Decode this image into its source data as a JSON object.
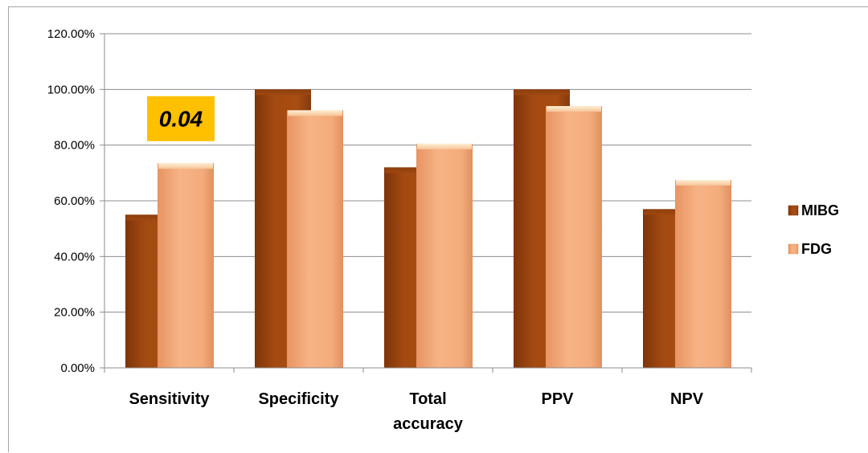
{
  "chart_data": {
    "type": "bar",
    "categories": [
      "Sensitivity",
      "Specificity",
      "Total accuracy",
      "PPV",
      "NPV"
    ],
    "category_lines": [
      [
        "Sensitivity"
      ],
      [
        "Specificity"
      ],
      [
        "Total",
        "accuracy"
      ],
      [
        "PPV"
      ],
      [
        "NPV"
      ]
    ],
    "series": [
      {
        "name": "MIBG",
        "values": [
          55,
          100,
          72,
          100,
          57
        ],
        "color": "#a0470f"
      },
      {
        "name": "FDG",
        "values": [
          73.5,
          92.5,
          80.5,
          94,
          67.5
        ],
        "color": "#f2a977"
      }
    ],
    "ylim": [
      0,
      120
    ],
    "yticks": [
      0,
      20,
      40,
      60,
      80,
      100,
      120
    ],
    "ytick_labels": [
      "0.00%",
      "20.00%",
      "40.00%",
      "60.00%",
      "80.00%",
      "100.00%",
      "120.00%"
    ],
    "grid": true,
    "legend_position": "right",
    "annotations": [
      {
        "text": "0.04",
        "category": "Sensitivity",
        "y": 89.5,
        "background": "#ffc000"
      }
    ],
    "title": "",
    "xlabel": "",
    "ylabel": ""
  }
}
